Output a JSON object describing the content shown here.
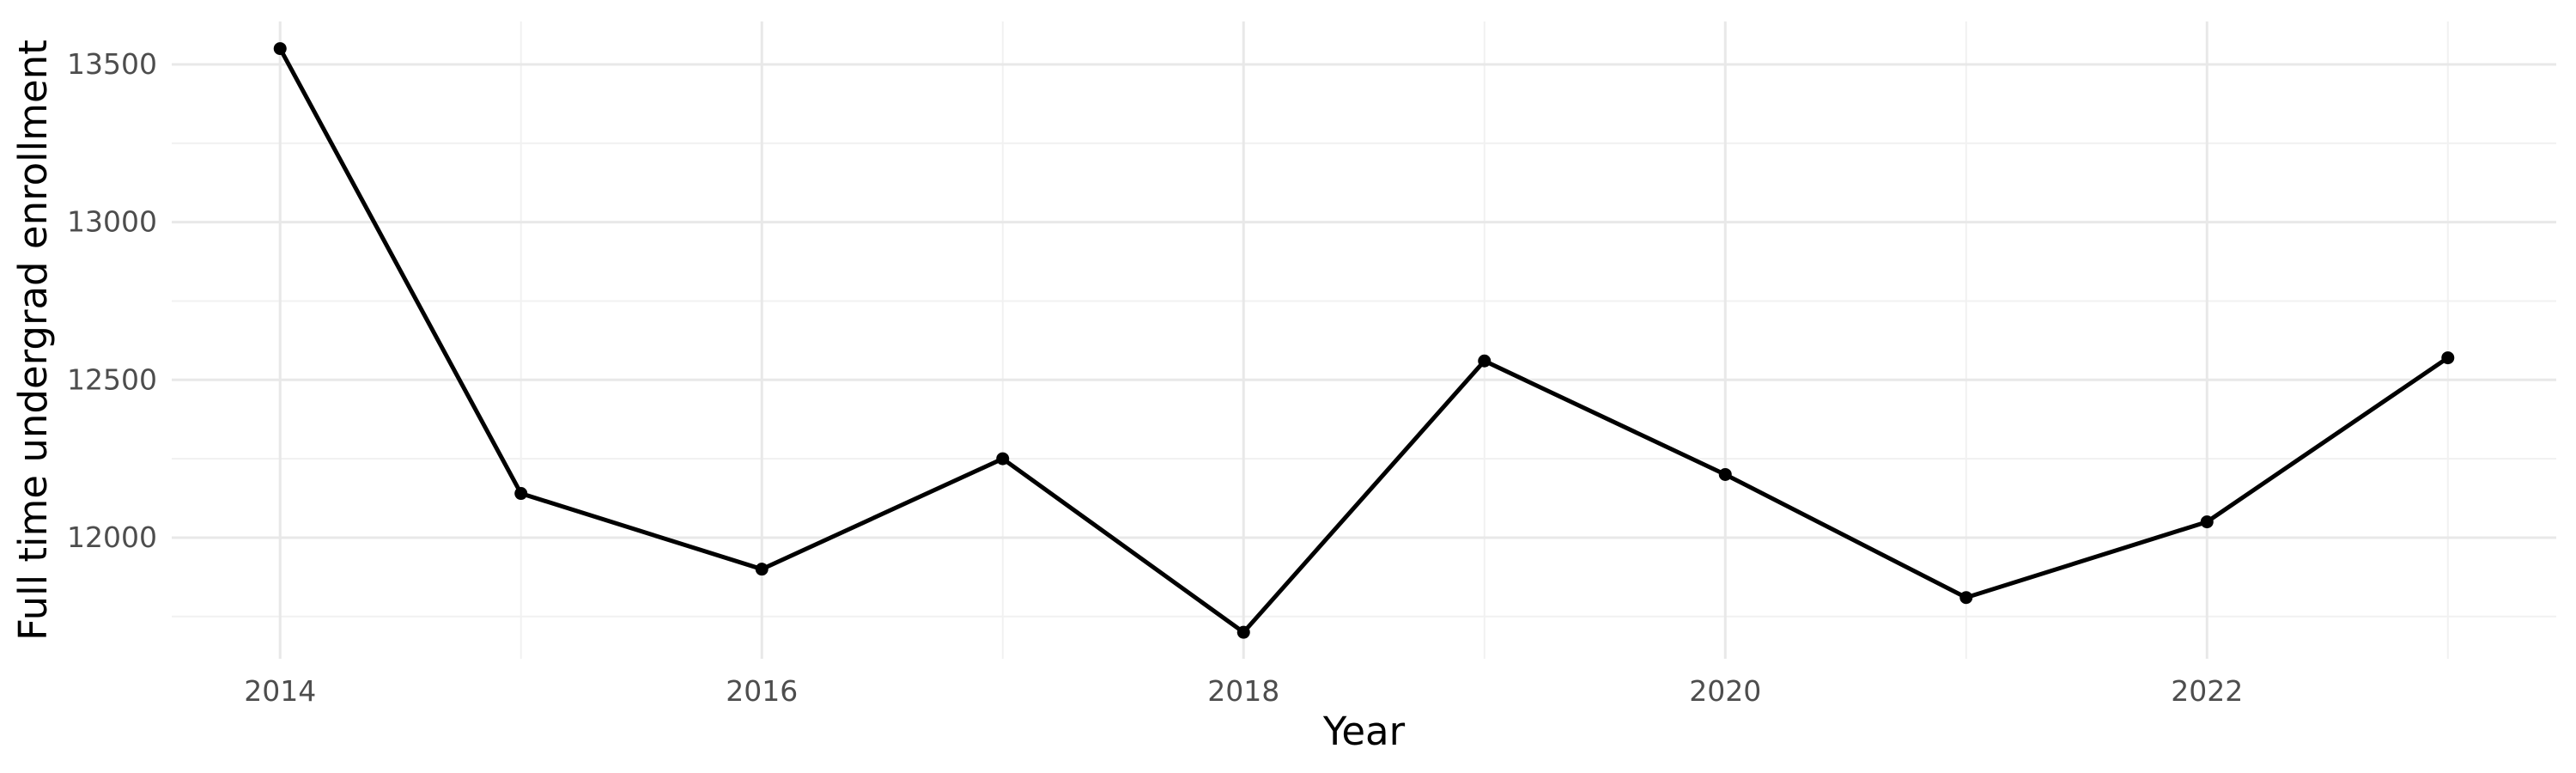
{
  "figure": {
    "kind": "plotnine-style line chart",
    "background_color": "#FFFFFF"
  },
  "chart_data": {
    "type": "line",
    "title": "",
    "xlabel": "Year",
    "ylabel": "Full time undergrad enrollment",
    "x": [
      2014,
      2015,
      2016,
      2017,
      2018,
      2019,
      2020,
      2021,
      2022,
      2023
    ],
    "y": [
      13550,
      12140,
      11900,
      12250,
      11700,
      12560,
      12200,
      11810,
      12050,
      12570
    ],
    "series_name": "Full time undergrad enrollment",
    "x_tick_labels": [
      "2014",
      "2016",
      "2018",
      "2020",
      "2022"
    ],
    "x_breaks": [
      2014,
      2016,
      2018,
      2020,
      2022
    ],
    "x_minor_breaks": [
      2015,
      2017,
      2019,
      2021,
      2023
    ],
    "y_tick_labels": [
      "12000",
      "12500",
      "13000",
      "13500"
    ],
    "y_breaks": [
      12000,
      12500,
      13000,
      13500
    ],
    "y_minor_breaks": [
      11750,
      12250,
      12750,
      13250
    ],
    "xlim": [
      2013.55,
      2023.45
    ],
    "ylim": [
      11616,
      13636
    ],
    "grid": "major+minor, no axis lines, no tick marks",
    "legend_position": "none",
    "marker": "filled-circle",
    "colors": {
      "line": "#000000",
      "point": "#000000",
      "grid_major": "#E8E8E8",
      "grid_minor": "#F1F1F1",
      "tick_label": "#4D4D4D",
      "axis_title": "#000000",
      "background": "#FFFFFF"
    }
  }
}
